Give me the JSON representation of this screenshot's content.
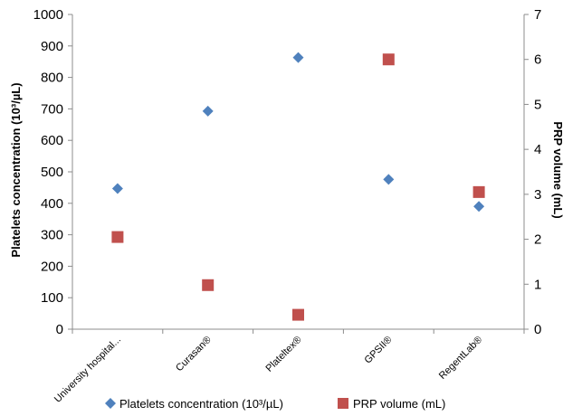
{
  "chart_data": {
    "type": "scatter",
    "categories": [
      "University hospital...",
      "Curasan®",
      "Plateltex®",
      "GPSII®",
      "RegentLab®"
    ],
    "series": [
      {
        "name": "Platelets concentration (10³/µL)",
        "axis": "left",
        "marker": "diamond",
        "color": "#4f81bd",
        "values": [
          447,
          693,
          863,
          476,
          390
        ]
      },
      {
        "name": "PRP volume (mL)",
        "axis": "right",
        "marker": "square",
        "color": "#c0504d",
        "values": [
          2.05,
          0.98,
          0.32,
          6.0,
          3.05
        ]
      }
    ],
    "y_left": {
      "label": "Platelets concentration (10³/µL)",
      "lim": [
        0,
        1000
      ],
      "ticks": [
        "0",
        "100",
        "200",
        "300",
        "400",
        "500",
        "600",
        "700",
        "800",
        "900",
        "1000"
      ]
    },
    "y_right": {
      "label": "PRP volume (mL)",
      "lim": [
        0,
        7
      ],
      "ticks": [
        "0",
        "1",
        "2",
        "3",
        "4",
        "5",
        "6",
        "7"
      ]
    },
    "grid": false,
    "legend_position": "bottom"
  }
}
